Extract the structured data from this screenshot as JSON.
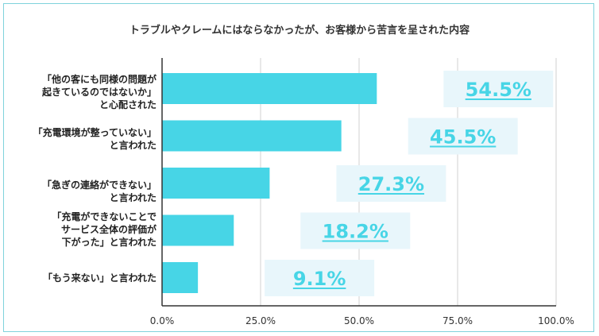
{
  "chart_data": {
    "type": "bar",
    "orientation": "horizontal",
    "title": "トラブルやクレームにはならなかったが、お客様から苦言を呈された内容",
    "categories": [
      "「他の客にも同様の問題が\n起きているのではないか」\nと心配された",
      "「充電環境が整っていない」\nと言われた",
      "「急ぎの連絡ができない」\nと言われた",
      "「充電ができないことで\nサービス全体の評価が\n下がった」と言われた",
      "「もう来ない」と言われた"
    ],
    "values": [
      54.5,
      45.5,
      27.3,
      18.2,
      9.1
    ],
    "value_labels": [
      "54.5%",
      "45.5%",
      "27.3%",
      "18.2%",
      "9.1%"
    ],
    "xlim": [
      0,
      100
    ],
    "xticks": [
      "0.0%",
      "25.0%",
      "50.0%",
      "75.0%",
      "100.0%"
    ],
    "xtick_values": [
      0,
      25,
      50,
      75,
      100
    ],
    "grid": true,
    "legend": "none",
    "bar_color": "#47d5e6",
    "label_box_color": "#e8f6fb",
    "label_text_color": "#47d5e6"
  }
}
